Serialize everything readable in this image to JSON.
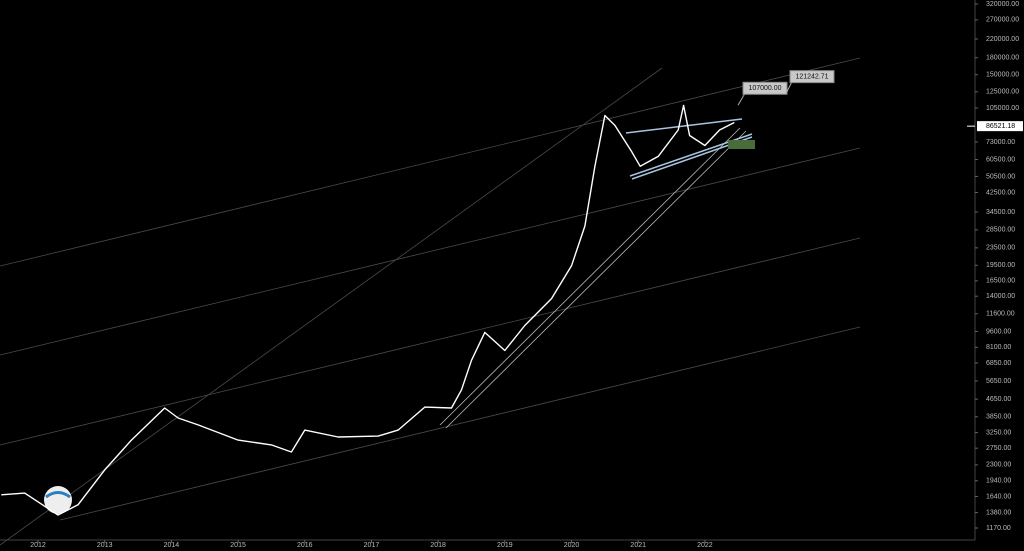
{
  "chart_data": {
    "type": "line",
    "log_scale": true,
    "grid": false,
    "x": [
      2011.45,
      2011.8,
      2012.3,
      2012.6,
      2013.0,
      2013.4,
      2013.9,
      2014.1,
      2014.4,
      2015.0,
      2015.5,
      2015.8,
      2016.0,
      2016.5,
      2017.1,
      2017.4,
      2017.8,
      2018.2,
      2018.35,
      2018.5,
      2018.7,
      2019.0,
      2019.3,
      2019.7,
      2020.0,
      2020.2,
      2020.35,
      2020.5,
      2020.65,
      2020.9,
      2021.03,
      2021.3,
      2021.6,
      2021.68,
      2021.77,
      2022.0,
      2022.22,
      2022.44
    ],
    "series": [
      {
        "color": "#ffffff",
        "values": [
          1670,
          1700,
          1345,
          1500,
          2180,
          3000,
          4230,
          3800,
          3530,
          3000,
          2850,
          2640,
          3340,
          3100,
          3130,
          3340,
          4270,
          4230,
          5140,
          7050,
          9500,
          7830,
          10230,
          13650,
          19400,
          29700,
          56300,
          97000,
          87200,
          66000,
          56300,
          62600,
          83000,
          108000,
          78300,
          70300,
          83000,
          90000
        ]
      }
    ],
    "xlim": [
      2011.43,
      2026.05
    ],
    "xticks": [
      2012,
      2013,
      2014,
      2015,
      2016,
      2017,
      2018,
      2019,
      2020,
      2021,
      2022
    ],
    "ylim": [
      1029,
      334000
    ],
    "yticks": [
      {
        "value": 320000,
        "label": "320000.00"
      },
      {
        "value": 270000,
        "label": "270000.00"
      },
      {
        "value": 220000,
        "label": "220000.00"
      },
      {
        "value": 180000,
        "label": "180000.00"
      },
      {
        "value": 150000,
        "label": "150000.00"
      },
      {
        "value": 125000,
        "label": "125000.00"
      },
      {
        "value": 105000,
        "label": "105000.00"
      },
      {
        "value": 73000,
        "label": "73000.00"
      },
      {
        "value": 60500,
        "label": "60500.00"
      },
      {
        "value": 50500,
        "label": "50500.00"
      },
      {
        "value": 42500,
        "label": "42500.00"
      },
      {
        "value": 34500,
        "label": "34500.00"
      },
      {
        "value": 28500,
        "label": "28500.00"
      },
      {
        "value": 23500,
        "label": "23500.00"
      },
      {
        "value": 19500,
        "label": "19500.00"
      },
      {
        "value": 16500,
        "label": "16500.00"
      },
      {
        "value": 14000,
        "label": "14000.00"
      },
      {
        "value": 11600,
        "label": "11600.00"
      },
      {
        "value": 9600,
        "label": "9600.00"
      },
      {
        "value": 8100,
        "label": "8100.00"
      },
      {
        "value": 6850,
        "label": "6850.00"
      },
      {
        "value": 5650,
        "label": "5650.00"
      },
      {
        "value": 4650,
        "label": "4650.00"
      },
      {
        "value": 3850,
        "label": "3850.00"
      },
      {
        "value": 3250,
        "label": "3250.00"
      },
      {
        "value": 2750,
        "label": "2750.00"
      },
      {
        "value": 2300,
        "label": "2300.00"
      },
      {
        "value": 1940,
        "label": "1940.00"
      },
      {
        "value": 1640,
        "label": "1640.00"
      },
      {
        "value": 1380,
        "label": "1380.00"
      },
      {
        "value": 1170,
        "label": "1170.00"
      }
    ],
    "price_label": {
      "value": 86521.18,
      "label": "86521.18"
    },
    "callouts": [
      {
        "value": 107000,
        "label": "107000.00"
      },
      {
        "value": 121242.71,
        "label": "121242.71"
      }
    ]
  }
}
